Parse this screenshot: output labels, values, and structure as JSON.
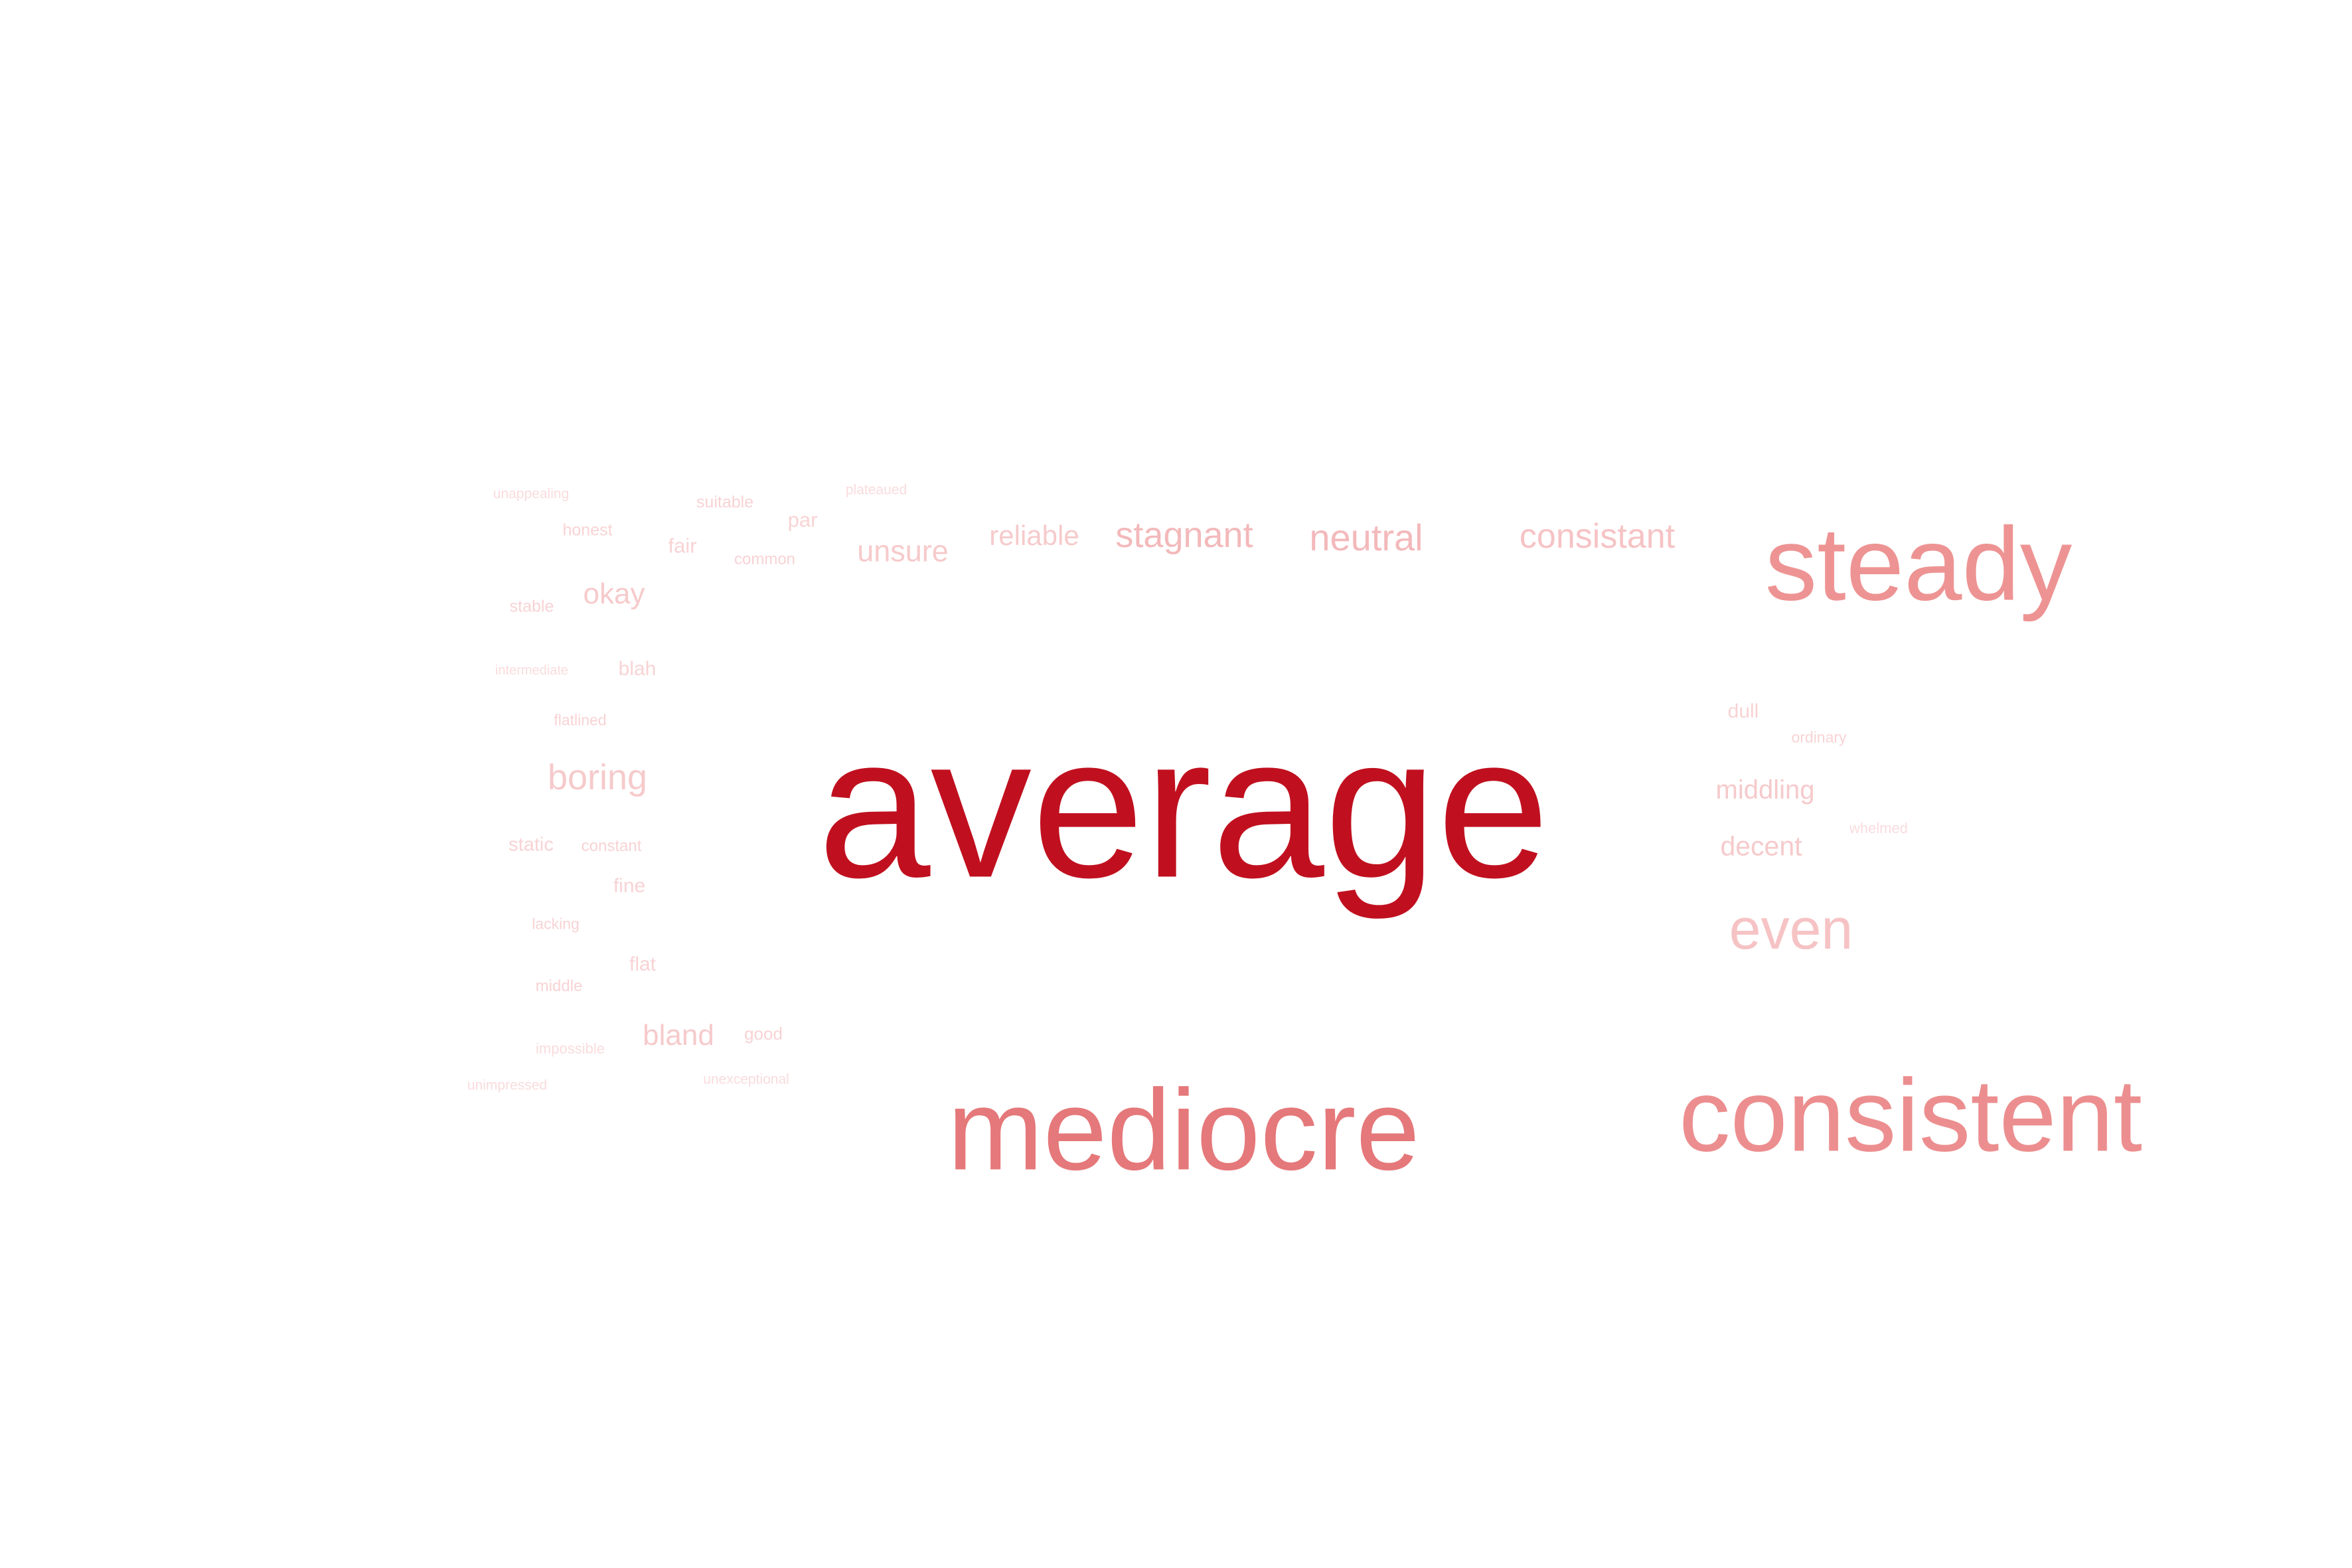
{
  "word_cloud": {
    "words": [
      {
        "text": "average",
        "tier": 1,
        "color": "#c0101f"
      },
      {
        "text": "mediocre",
        "tier": 2,
        "color": "#e5787a"
      },
      {
        "text": "consistent",
        "tier": 2,
        "color": "#ec8e8f"
      },
      {
        "text": "steady",
        "tier": 2,
        "color": "#ee9393"
      },
      {
        "text": "even",
        "tier": 3,
        "color": "#f6c3c5"
      },
      {
        "text": "consistant",
        "tier": 4,
        "color": "#f6c3c5"
      },
      {
        "text": "neutral",
        "tier": 4,
        "color": "#f3b9bb"
      },
      {
        "text": "stagnant",
        "tier": 4,
        "color": "#f3b9bb"
      },
      {
        "text": "reliable",
        "tier": 5,
        "color": "#f6cacb"
      },
      {
        "text": "unsure",
        "tier": 5,
        "color": "#f6cacb"
      },
      {
        "text": "boring",
        "tier": 5,
        "color": "#f6cacb"
      },
      {
        "text": "middling",
        "tier": 6,
        "color": "#f6cacb"
      },
      {
        "text": "decent",
        "tier": 6,
        "color": "#f6cacb"
      },
      {
        "text": "okay",
        "tier": 6,
        "color": "#f6cacb"
      },
      {
        "text": "bland",
        "tier": 6,
        "color": "#f6cacb"
      },
      {
        "text": "fair",
        "tier": 7,
        "color": "#f8d3d4"
      },
      {
        "text": "par",
        "tier": 7,
        "color": "#f8d3d4"
      },
      {
        "text": "blah",
        "tier": 7,
        "color": "#f8d3d4"
      },
      {
        "text": "static",
        "tier": 7,
        "color": "#f8d3d4"
      },
      {
        "text": "fine",
        "tier": 7,
        "color": "#f8d3d4"
      },
      {
        "text": "flat",
        "tier": 7,
        "color": "#f8d3d4"
      },
      {
        "text": "dull",
        "tier": 7,
        "color": "#f8d3d4"
      },
      {
        "text": "good",
        "tier": 8,
        "color": "#f8d3d4"
      },
      {
        "text": "honest",
        "tier": 8,
        "color": "#f8d3d4"
      },
      {
        "text": "suitable",
        "tier": 8,
        "color": "#f8d3d4"
      },
      {
        "text": "common",
        "tier": 8,
        "color": "#f8d3d4"
      },
      {
        "text": "stable",
        "tier": 8,
        "color": "#f8d3d4"
      },
      {
        "text": "constant",
        "tier": 8,
        "color": "#f8d3d4"
      },
      {
        "text": "middle",
        "tier": 8,
        "color": "#f8d3d4"
      },
      {
        "text": "ordinary",
        "tier": 8,
        "color": "#f8d3d4"
      },
      {
        "text": "flatlined",
        "tier": 8,
        "color": "#f8d3d4"
      },
      {
        "text": "lacking",
        "tier": 8,
        "color": "#f8d3d4"
      },
      {
        "text": "whelmed",
        "tier": 9,
        "color": "#fadcdd"
      },
      {
        "text": "unappealing",
        "tier": 9,
        "color": "#fadcdd"
      },
      {
        "text": "plateaued",
        "tier": 9,
        "color": "#fadcdd"
      },
      {
        "text": "intermediate",
        "tier": 9,
        "color": "#fadcdd"
      },
      {
        "text": "impossible",
        "tier": 9,
        "color": "#fadcdd"
      },
      {
        "text": "unimpressed",
        "tier": 9,
        "color": "#fadcdd"
      },
      {
        "text": "unexceptional",
        "tier": 9,
        "color": "#fadcdd"
      }
    ]
  }
}
